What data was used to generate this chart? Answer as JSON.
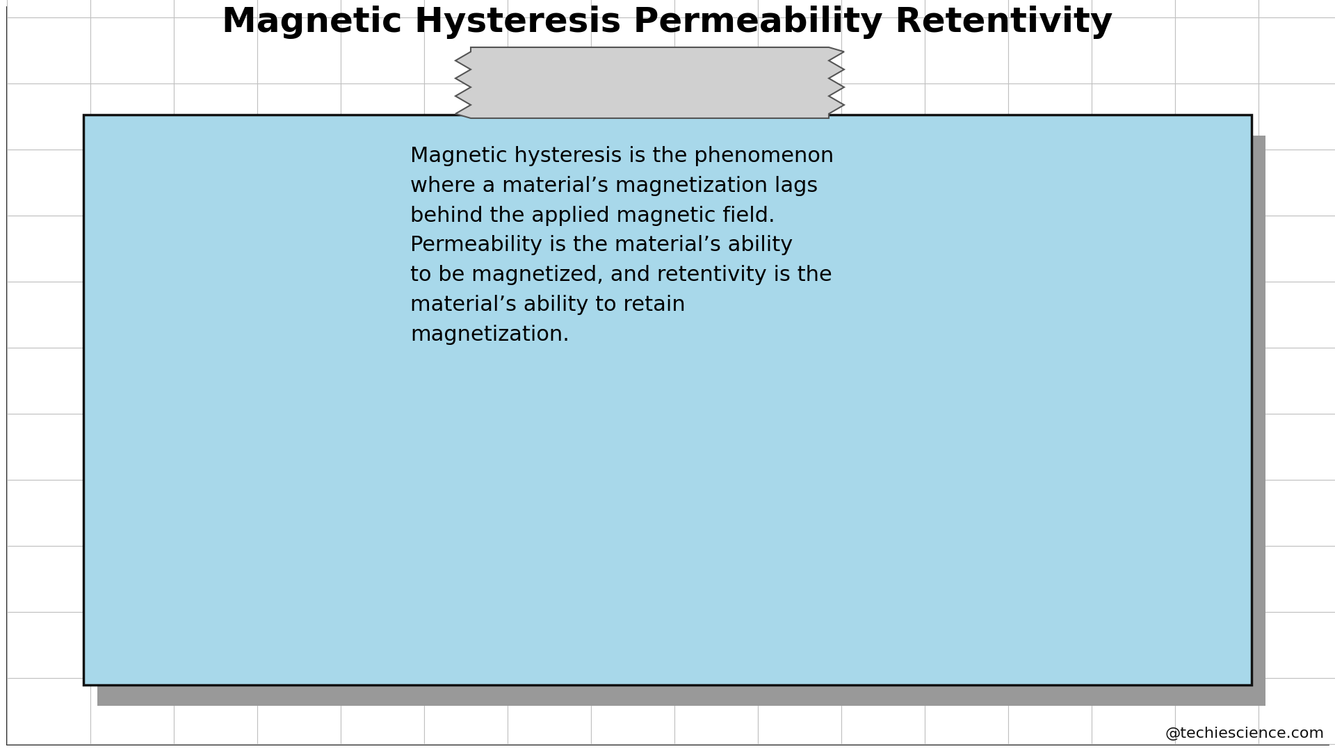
{
  "title": "Magnetic Hysteresis Permeability Retentivity",
  "title_fontsize": 36,
  "title_fontweight": "bold",
  "body_text": "Magnetic hysteresis is the phenomenon\nwhere a material’s magnetization lags\nbehind the applied magnetic field.\nPermeability is the material’s ability\nto be magnetized, and retentivity is the\nmaterial’s ability to retain\nmagnetization.",
  "body_fontsize": 22,
  "background_color": "#ffffff",
  "outer_border_color": "#000000",
  "tile_line_color": "#c0c0c0",
  "card_bg_color": "#a8d8ea",
  "card_border_color": "#111111",
  "shadow_color": "#999999",
  "banner_color": "#d0d0d0",
  "banner_border_color": "#555555",
  "watermark": "@techiescience.com",
  "watermark_fontsize": 16
}
